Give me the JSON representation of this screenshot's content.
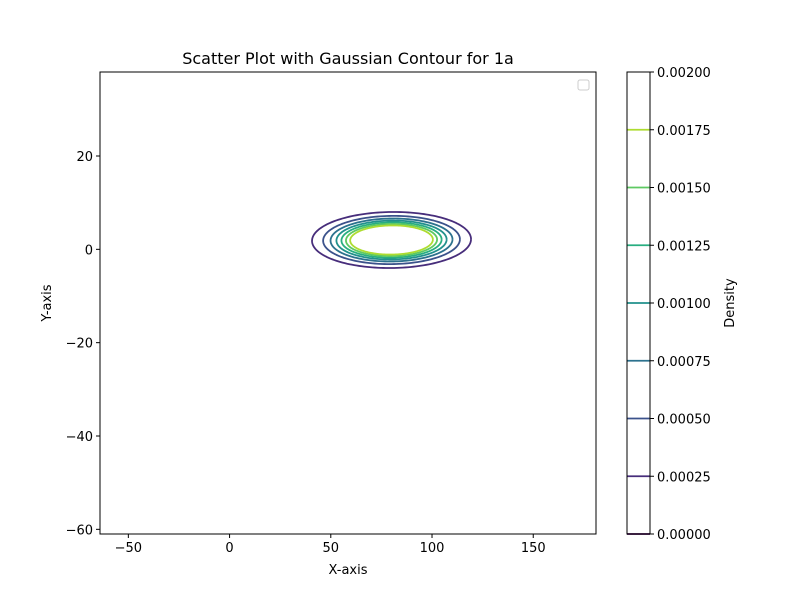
{
  "chart_data": {
    "type": "contour",
    "title": "Scatter Plot with Gaussian Contour for 1a",
    "xlabel": "X-axis",
    "ylabel": "Y-axis",
    "xlim": [
      -64,
      181
    ],
    "ylim": [
      -61,
      38
    ],
    "xticks": [
      -50,
      0,
      50,
      100,
      150
    ],
    "yticks": [
      -60,
      -40,
      -20,
      0,
      20
    ],
    "xtick_labels": [
      "−50",
      "0",
      "50",
      "100",
      "150"
    ],
    "ytick_labels": [
      "−60",
      "−40",
      "−20",
      "0",
      "20"
    ],
    "legend": {
      "placement": "upper right",
      "entries": []
    },
    "distribution": {
      "mean_x": 80,
      "mean_y": 2,
      "std_x": 17,
      "std_y": 2.6,
      "correlation": 0.03,
      "skew_x": 0.13
    },
    "contour_levels": [
      0.00025,
      0.0005,
      0.00075,
      0.001,
      0.00125,
      0.0015,
      0.00175
    ],
    "contour_colors": [
      "#472d7b",
      "#3b528b",
      "#2c728e",
      "#21918c",
      "#28ae80",
      "#5ec962",
      "#addc30"
    ],
    "colorbar": {
      "label": "Density",
      "range": [
        0,
        0.002
      ],
      "ticks": [
        0,
        0.00025,
        0.0005,
        0.00075,
        0.001,
        0.00125,
        0.0015,
        0.00175,
        0.002
      ],
      "tick_labels": [
        "0.00000",
        "0.00025",
        "0.00050",
        "0.00075",
        "0.00100",
        "0.00125",
        "0.00150",
        "0.00175",
        "0.00200"
      ],
      "line_values": [
        0,
        0.00025,
        0.0005,
        0.00075,
        0.001,
        0.00125,
        0.0015,
        0.00175
      ],
      "line_colors": [
        "#440154",
        "#472d7b",
        "#3b528b",
        "#2c728e",
        "#21918c",
        "#28ae80",
        "#5ec962",
        "#addc30"
      ]
    }
  }
}
